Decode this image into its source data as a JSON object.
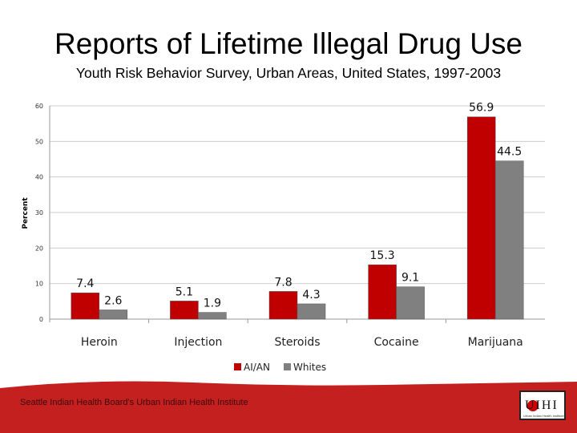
{
  "slide": {
    "title": "Reports of Lifetime Illegal Drug Use",
    "subtitle": "Youth Risk Behavior Survey, Urban Areas, United States, 1997-2003",
    "footer": "Seattle Indian Health Board's Urban Indian Health Institute",
    "logo_text": "UIHI",
    "logo_subtext": "Urban Indian Health Institute"
  },
  "colors": {
    "aian": "#c00000",
    "whites": "#808080",
    "band": "#c42020"
  },
  "chart_data": {
    "type": "bar",
    "title": "",
    "xlabel": "",
    "ylabel": "Percent",
    "ylim": [
      0,
      60
    ],
    "yticks": [
      0,
      10,
      20,
      30,
      40,
      50,
      60
    ],
    "grid": true,
    "legend_position": "bottom",
    "categories": [
      "Heroin",
      "Injection",
      "Steroids",
      "Cocaine",
      "Marijuana"
    ],
    "series": [
      {
        "name": "AI/AN",
        "values": [
          7.4,
          5.1,
          7.8,
          15.3,
          56.9
        ]
      },
      {
        "name": "Whites",
        "values": [
          2.6,
          1.9,
          4.3,
          9.1,
          44.5
        ]
      }
    ]
  }
}
